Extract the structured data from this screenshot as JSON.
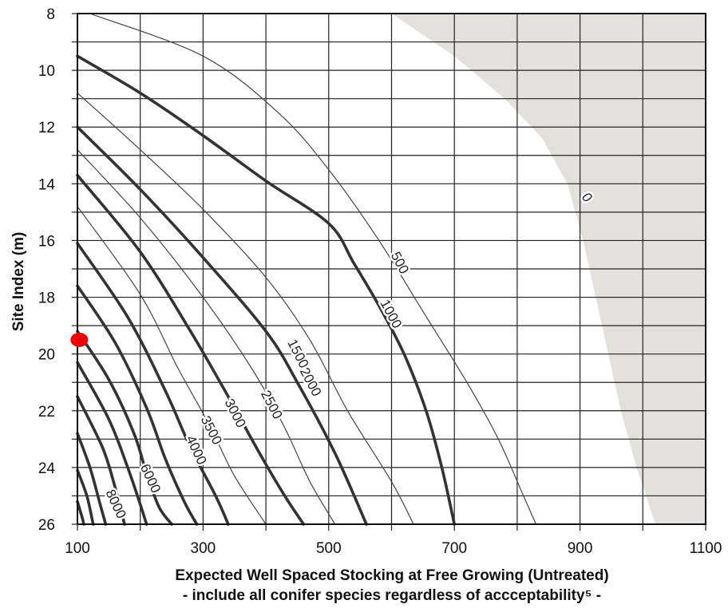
{
  "chart_data": {
    "type": "line",
    "ylabel": "Site Index (m)",
    "xlabel": "Expected Well Spaced Stocking at Free Growing (Untreated)",
    "xlabel_sub": "- include all conifer species regardless of accceptability⁵ -",
    "xlim": [
      100,
      1100
    ],
    "ylim": [
      8,
      26
    ],
    "y_inverted": true,
    "grid": true,
    "x_ticks": [
      100,
      300,
      500,
      700,
      900,
      1100
    ],
    "x_grid": [
      100,
      200,
      300,
      400,
      500,
      600,
      700,
      800,
      900,
      1000,
      1100
    ],
    "y_ticks": [
      8,
      10,
      12,
      14,
      16,
      18,
      20,
      22,
      24,
      26
    ],
    "y_grid": [
      8,
      9,
      10,
      11,
      12,
      13,
      14,
      15,
      16,
      17,
      18,
      19,
      20,
      21,
      22,
      23,
      24,
      25,
      26
    ],
    "shaded_region": {
      "label": "0",
      "color": "#e3e1de",
      "boundary": [
        [
          600,
          8
        ],
        [
          700,
          9.5
        ],
        [
          780,
          11
        ],
        [
          840,
          12.4
        ],
        [
          880,
          14
        ],
        [
          905,
          16
        ],
        [
          925,
          18
        ],
        [
          945,
          20
        ],
        [
          965,
          22
        ],
        [
          990,
          24
        ],
        [
          1020,
          26
        ]
      ]
    },
    "series": [
      {
        "name": "500",
        "weight": "thin",
        "values": [
          [
            120,
            8
          ],
          [
            300,
            9.5
          ],
          [
            420,
            11.5
          ],
          [
            500,
            13.5
          ],
          [
            580,
            16
          ],
          [
            650,
            18.5
          ],
          [
            720,
            21
          ],
          [
            770,
            23
          ],
          [
            810,
            25
          ],
          [
            830,
            26
          ]
        ]
      },
      {
        "name": "1000",
        "weight": "thick",
        "values": [
          [
            100,
            9.5
          ],
          [
            200,
            10.8
          ],
          [
            300,
            12.3
          ],
          [
            400,
            13.9
          ],
          [
            500,
            15.4
          ],
          [
            540,
            16.8
          ],
          [
            580,
            18.3
          ],
          [
            620,
            20
          ],
          [
            655,
            22
          ],
          [
            680,
            24
          ],
          [
            700,
            26
          ]
        ]
      },
      {
        "name": "1500",
        "weight": "thin",
        "values": [
          [
            100,
            10.8
          ],
          [
            200,
            12.8
          ],
          [
            300,
            14.9
          ],
          [
            400,
            17.3
          ],
          [
            470,
            19.5
          ],
          [
            530,
            22
          ],
          [
            600,
            24.5
          ],
          [
            635,
            26
          ]
        ]
      },
      {
        "name": "2000",
        "weight": "thick",
        "values": [
          [
            100,
            12
          ],
          [
            200,
            14.2
          ],
          [
            300,
            16.6
          ],
          [
            400,
            19.2
          ],
          [
            450,
            21
          ],
          [
            510,
            23.5
          ],
          [
            560,
            26
          ]
        ]
      },
      {
        "name": "2500",
        "weight": "thin",
        "values": [
          [
            100,
            12.8
          ],
          [
            200,
            15.2
          ],
          [
            300,
            18
          ],
          [
            380,
            20.6
          ],
          [
            430,
            22.6
          ],
          [
            470,
            24.5
          ],
          [
            510,
            26
          ]
        ]
      },
      {
        "name": "3000",
        "weight": "thick",
        "values": [
          [
            100,
            13.7
          ],
          [
            200,
            16.4
          ],
          [
            280,
            19.2
          ],
          [
            340,
            21.5
          ],
          [
            390,
            23.5
          ],
          [
            430,
            25
          ],
          [
            460,
            26
          ]
        ]
      },
      {
        "name": "3500",
        "weight": "thin",
        "values": [
          [
            100,
            14.8
          ],
          [
            200,
            17.9
          ],
          [
            260,
            20.5
          ],
          [
            310,
            22.5
          ],
          [
            350,
            24.3
          ],
          [
            400,
            26
          ]
        ]
      },
      {
        "name": "4000",
        "weight": "thick",
        "values": [
          [
            100,
            16.1
          ],
          [
            180,
            18.7
          ],
          [
            240,
            21.3
          ],
          [
            280,
            23.3
          ],
          [
            320,
            25
          ],
          [
            340,
            26
          ]
        ]
      },
      {
        "name": "",
        "weight": "thick",
        "values": [
          [
            100,
            17.6
          ],
          [
            160,
            19.6
          ],
          [
            210,
            21.9
          ],
          [
            240,
            23.7
          ],
          [
            270,
            25.2
          ],
          [
            290,
            26
          ]
        ]
      },
      {
        "name": "6000",
        "weight": "thick",
        "values": [
          [
            100,
            19.2
          ],
          [
            150,
            20.9
          ],
          [
            190,
            22.8
          ],
          [
            210,
            24.2
          ],
          [
            230,
            25.4
          ],
          [
            250,
            26
          ]
        ]
      },
      {
        "name": "",
        "weight": "thick",
        "values": [
          [
            100,
            20.3
          ],
          [
            150,
            22.3
          ],
          [
            180,
            24
          ],
          [
            200,
            25.3
          ],
          [
            210,
            26
          ]
        ]
      },
      {
        "name": "8000",
        "weight": "thick",
        "values": [
          [
            100,
            21.5
          ],
          [
            140,
            23.3
          ],
          [
            160,
            24.7
          ],
          [
            175,
            26
          ]
        ]
      },
      {
        "name": "",
        "weight": "thick",
        "values": [
          [
            100,
            22.8
          ],
          [
            120,
            24
          ],
          [
            135,
            25.2
          ],
          [
            145,
            26
          ]
        ]
      },
      {
        "name": "",
        "weight": "thick",
        "values": [
          [
            100,
            24.1
          ],
          [
            115,
            25
          ],
          [
            125,
            26
          ]
        ]
      },
      {
        "name": "",
        "weight": "thick",
        "values": [
          [
            100,
            25.2
          ],
          [
            108,
            25.8
          ],
          [
            110,
            26
          ]
        ]
      }
    ],
    "contour_labels": [
      {
        "text": "0",
        "x": 910,
        "y": 14.5,
        "angle": 45
      },
      {
        "text": "500",
        "x": 612,
        "y": 16.8,
        "angle": 62
      },
      {
        "text": "1000",
        "x": 598,
        "y": 18.6,
        "angle": 62
      },
      {
        "text": "1500",
        "x": 450,
        "y": 20.0,
        "angle": 63
      },
      {
        "text": "2000",
        "x": 470,
        "y": 21.0,
        "angle": 62
      },
      {
        "text": "2500",
        "x": 408,
        "y": 21.8,
        "angle": 62
      },
      {
        "text": "3000",
        "x": 350,
        "y": 22.1,
        "angle": 63
      },
      {
        "text": "3500",
        "x": 312,
        "y": 22.7,
        "angle": 63
      },
      {
        "text": "4000",
        "x": 288,
        "y": 23.4,
        "angle": 65
      },
      {
        "text": "6000",
        "x": 215,
        "y": 24.4,
        "angle": 65
      },
      {
        "text": "8000",
        "x": 160,
        "y": 25.3,
        "angle": 65
      }
    ],
    "marker": {
      "x": 103,
      "y": 19.5,
      "color": "#ee0000"
    }
  }
}
